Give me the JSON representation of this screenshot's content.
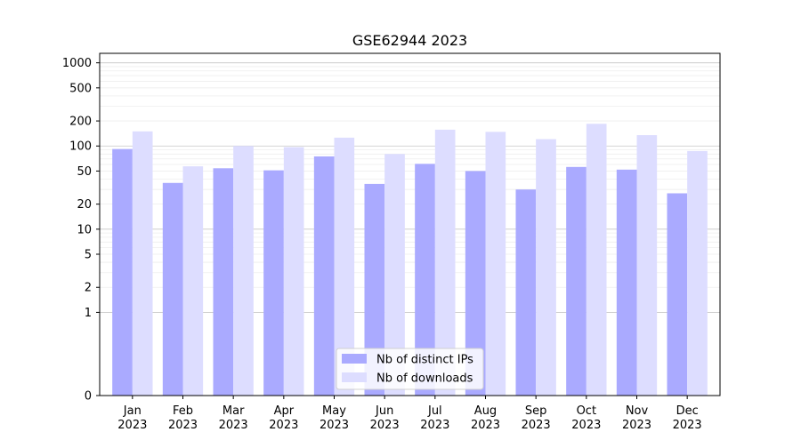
{
  "chart_data": {
    "type": "bar",
    "title": "GSE62944 2023",
    "xlabel": "",
    "ylabel": "",
    "scale": "symlog",
    "categories": [
      "Jan\n2023",
      "Feb\n2023",
      "Mar\n2023",
      "Apr\n2023",
      "May\n2023",
      "Jun\n2023",
      "Jul\n2023",
      "Aug\n2023",
      "Sep\n2023",
      "Oct\n2023",
      "Nov\n2023",
      "Dec\n2023"
    ],
    "yticks": [
      0,
      1,
      2,
      5,
      10,
      20,
      50,
      100,
      200,
      500,
      1000
    ],
    "ylim": [
      0,
      1300
    ],
    "series": [
      {
        "name": "Nb of distinct IPs",
        "color": "#aaaaff",
        "values": [
          92,
          36,
          54,
          51,
          75,
          35,
          61,
          50,
          30,
          56,
          52,
          27
        ]
      },
      {
        "name": "Nb of downloads",
        "color": "#ddddff",
        "values": [
          150,
          57,
          100,
          97,
          126,
          80,
          157,
          148,
          121,
          185,
          135,
          87
        ]
      }
    ],
    "legend": "bottom-center",
    "grid": true
  }
}
